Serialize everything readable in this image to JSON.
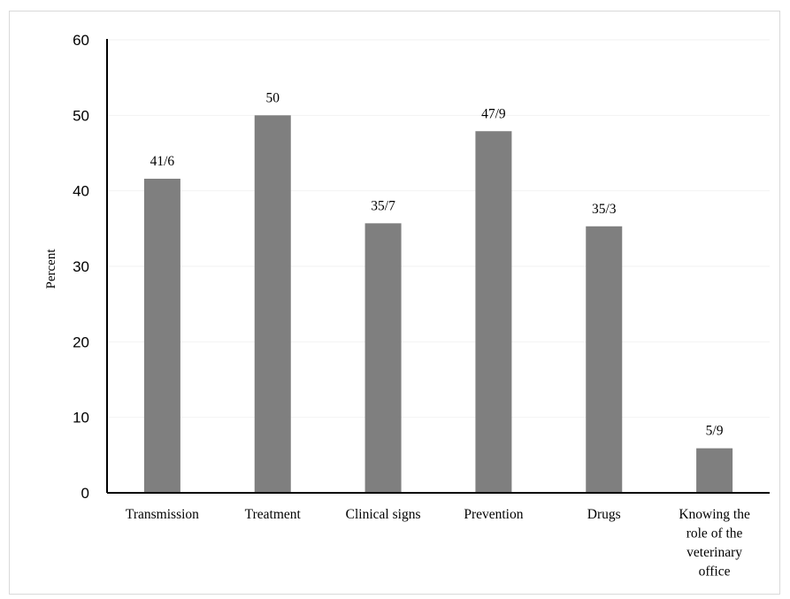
{
  "chart_data": {
    "type": "bar",
    "title": "",
    "xlabel": "",
    "ylabel": "Percent",
    "ylim": [
      0,
      60
    ],
    "yticks": [
      0,
      10,
      20,
      30,
      40,
      50,
      60
    ],
    "grid": false,
    "legend": "none",
    "bar_color": "#7f7f7f",
    "categories": [
      [
        "Transmission"
      ],
      [
        "Treatment"
      ],
      [
        "Clinical signs"
      ],
      [
        "Prevention"
      ],
      [
        "Drugs"
      ],
      [
        "Knowing the",
        "role of the",
        "veterinary",
        "office"
      ]
    ],
    "values": [
      41.6,
      50,
      35.7,
      47.9,
      35.3,
      5.9
    ],
    "data_labels": [
      "41/6",
      "50",
      "35/7",
      "47/9",
      "35/3",
      "5/9"
    ]
  }
}
